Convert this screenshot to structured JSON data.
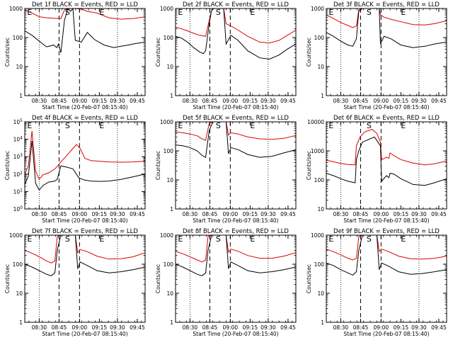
{
  "chart_data": [
    {
      "type": "line",
      "title": "Det 1f BLACK = Events, RED = LLD",
      "ylabel": "Counts/sec",
      "xlabel": "Start Time (20-Feb-07 08:15:40)",
      "yscale": "log",
      "ylim": [
        1,
        1000
      ],
      "ytick_labels": [
        "1",
        "10",
        "100",
        "1000"
      ],
      "xtick_labels": [
        "08:30",
        "08:45",
        "09:00",
        "09:15",
        "09:30",
        "09:45"
      ],
      "markers": [
        "E",
        "S",
        "E"
      ],
      "series": [
        {
          "color": "#000000",
          "t": [
            0,
            0.06,
            0.12,
            0.18,
            0.24,
            0.265,
            0.28,
            0.3,
            0.33,
            0.36,
            0.38,
            0.4,
            0.42,
            0.47,
            0.52,
            0.58,
            0.66,
            0.74,
            0.8,
            0.86,
            0.92,
            1
          ],
          "values": [
            170,
            120,
            75,
            48,
            55,
            45,
            60,
            30,
            400,
            1000,
            800,
            1000,
            80,
            70,
            150,
            85,
            55,
            45,
            50,
            55,
            62,
            70
          ]
        },
        {
          "color": "#dd0000",
          "t": [
            0,
            0.06,
            0.12,
            0.18,
            0.24,
            0.3,
            0.33,
            0.36,
            0.38,
            0.4,
            0.42,
            0.47,
            0.52,
            0.6,
            0.7,
            0.8,
            0.9,
            1
          ],
          "values": [
            900,
            700,
            520,
            480,
            460,
            450,
            900,
            1000,
            1000,
            1000,
            1000,
            950,
            800,
            700,
            480,
            430,
            450,
            520
          ]
        }
      ]
    },
    {
      "type": "line",
      "title": "Det 2f BLACK = Events, RED = LLD",
      "ylabel": "Counts/sec",
      "xlabel": "Start Time (20-Feb-07 08:15:40)",
      "yscale": "log",
      "ylim": [
        1,
        1000
      ],
      "ytick_labels": [
        "1",
        "10",
        "100",
        "1000"
      ],
      "xtick_labels": [
        "08:30",
        "08:45",
        "09:00",
        "09:15",
        "09:30",
        "09:45"
      ],
      "markers": [
        "E",
        "S",
        "E"
      ],
      "series": [
        {
          "color": "#000000",
          "t": [
            0,
            0.05,
            0.1,
            0.15,
            0.2,
            0.23,
            0.25,
            0.28,
            0.3,
            0.32,
            0.38,
            0.4,
            0.42,
            0.46,
            0.52,
            0.6,
            0.7,
            0.78,
            0.86,
            0.93,
            1
          ],
          "values": [
            110,
            95,
            70,
            45,
            32,
            28,
            35,
            300,
            900,
            1000,
            1000,
            1000,
            60,
            120,
            80,
            35,
            20,
            18,
            25,
            40,
            60
          ]
        },
        {
          "color": "#dd0000",
          "t": [
            0,
            0.05,
            0.1,
            0.15,
            0.2,
            0.25,
            0.3,
            0.32,
            0.38,
            0.4,
            0.42,
            0.46,
            0.52,
            0.6,
            0.7,
            0.78,
            0.86,
            0.93,
            1
          ],
          "values": [
            230,
            200,
            170,
            140,
            120,
            110,
            900,
            1000,
            1000,
            1000,
            300,
            250,
            180,
            110,
            70,
            65,
            80,
            120,
            180
          ]
        }
      ]
    },
    {
      "type": "line",
      "title": "Det 3f BLACK = Events, RED = LLD",
      "ylabel": "Counts/sec",
      "xlabel": "Start Time (20-Feb-07 08:15:40)",
      "yscale": "log",
      "ylim": [
        1,
        1000
      ],
      "ytick_labels": [
        "1",
        "10",
        "100",
        "1000"
      ],
      "xtick_labels": [
        "08:30",
        "08:45",
        "09:00",
        "09:15",
        "09:30",
        "09:45"
      ],
      "markers": [
        "E",
        "S",
        "E"
      ],
      "series": [
        {
          "color": "#000000",
          "t": [
            0,
            0.06,
            0.12,
            0.18,
            0.22,
            0.25,
            0.27,
            0.3,
            0.35,
            0.4,
            0.44,
            0.45,
            0.48,
            0.54,
            0.62,
            0.72,
            0.82,
            0.9,
            1
          ],
          "values": [
            150,
            110,
            75,
            55,
            50,
            90,
            800,
            1000,
            1000,
            1000,
            1000,
            60,
            110,
            90,
            55,
            45,
            50,
            60,
            70
          ]
        },
        {
          "color": "#dd0000",
          "t": [
            0,
            0.06,
            0.12,
            0.18,
            0.22,
            0.25,
            0.27,
            0.3,
            0.4,
            0.44,
            0.45,
            0.48,
            0.54,
            0.62,
            0.72,
            0.82,
            0.9,
            1
          ],
          "values": [
            600,
            450,
            330,
            260,
            220,
            250,
            900,
            1000,
            1000,
            1000,
            600,
            500,
            420,
            350,
            280,
            270,
            300,
            380
          ]
        }
      ]
    },
    {
      "type": "line",
      "title": "Det 4f BLACK = Events, RED = LLD",
      "ylabel": "Counts/sec",
      "xlabel": "Start Time (20-Feb-07 08:15:40)",
      "yscale": "log",
      "ylim": [
        1,
        100000
      ],
      "ytick_labels": [
        "10^0",
        "10^1",
        "10^2",
        "10^3",
        "10^4",
        "10^5"
      ],
      "xtick_labels": [
        "08:30",
        "08:45",
        "09:00",
        "09:15",
        "09:30",
        "09:45"
      ],
      "markers": [
        "E",
        "S",
        "E"
      ],
      "series": [
        {
          "color": "#000000",
          "t": [
            0,
            0.03,
            0.06,
            0.09,
            0.12,
            0.15,
            0.2,
            0.25,
            0.27,
            0.3,
            0.35,
            0.4,
            0.45,
            0.5,
            0.55,
            0.62,
            0.7,
            0.8,
            0.9,
            1
          ],
          "values": [
            25,
            80,
            8000,
            30,
            12,
            22,
            35,
            40,
            50,
            300,
            250,
            200,
            60,
            45,
            40,
            38,
            40,
            50,
            70,
            100
          ]
        },
        {
          "color": "#dd0000",
          "t": [
            0,
            0.03,
            0.06,
            0.09,
            0.12,
            0.15,
            0.2,
            0.25,
            0.27,
            0.3,
            0.35,
            0.4,
            0.43,
            0.46,
            0.5,
            0.55,
            0.62,
            0.7,
            0.8,
            0.9,
            1
          ],
          "values": [
            100,
            300,
            30000,
            150,
            50,
            90,
            120,
            200,
            280,
            500,
            1200,
            3000,
            5000,
            3000,
            800,
            600,
            550,
            500,
            480,
            500,
            550
          ]
        }
      ]
    },
    {
      "type": "line",
      "title": "Det 5f BLACK = Events, RED = LLD",
      "ylabel": "Counts/sec",
      "xlabel": "Start Time (20-Feb-07 08:15:40)",
      "yscale": "log",
      "ylim": [
        1,
        1000
      ],
      "ytick_labels": [
        "1",
        "10",
        "100",
        "1000"
      ],
      "xtick_labels": [
        "08:30",
        "08:45",
        "09:00",
        "09:15",
        "09:30",
        "09:45"
      ],
      "markers": [
        "E",
        "S",
        "E"
      ],
      "series": [
        {
          "color": "#000000",
          "t": [
            0,
            0.06,
            0.12,
            0.18,
            0.22,
            0.25,
            0.28,
            0.31,
            0.38,
            0.42,
            0.44,
            0.46,
            0.52,
            0.6,
            0.7,
            0.8,
            0.9,
            1
          ],
          "values": [
            160,
            150,
            130,
            100,
            70,
            60,
            500,
            1000,
            1000,
            1000,
            80,
            130,
            110,
            75,
            60,
            65,
            85,
            110
          ]
        },
        {
          "color": "#dd0000",
          "t": [
            0,
            0.06,
            0.12,
            0.18,
            0.22,
            0.25,
            0.28,
            0.31,
            0.38,
            0.42,
            0.44,
            0.46,
            0.52,
            0.6,
            0.7,
            0.8,
            0.9,
            1
          ],
          "values": [
            450,
            420,
            380,
            330,
            260,
            230,
            900,
            1000,
            1000,
            1000,
            350,
            420,
            380,
            300,
            260,
            250,
            270,
            340
          ]
        }
      ]
    },
    {
      "type": "line",
      "title": "Det 6f BLACK = Events, RED = LLD",
      "ylabel": "Counts/sec",
      "xlabel": "Start Time (20-Feb-07 08:15:40)",
      "yscale": "log",
      "ylim": [
        10,
        10000
      ],
      "ytick_labels": [
        "10",
        "100",
        "1000",
        "10000"
      ],
      "xtick_labels": [
        "08:30",
        "08:45",
        "09:00",
        "09:15",
        "09:30",
        "09:45"
      ],
      "markers": [
        "E",
        "S",
        "E"
      ],
      "series": [
        {
          "color": "#000000",
          "t": [
            0,
            0.06,
            0.12,
            0.18,
            0.24,
            0.25,
            0.27,
            0.3,
            0.4,
            0.45,
            0.46,
            0.5,
            0.52,
            0.53,
            0.56,
            0.62,
            0.72,
            0.82,
            0.9,
            1
          ],
          "values": [
            170,
            140,
            110,
            90,
            80,
            500,
            1000,
            2000,
            3000,
            1500,
            90,
            140,
            120,
            170,
            160,
            110,
            70,
            65,
            80,
            110
          ]
        },
        {
          "color": "#dd0000",
          "t": [
            0,
            0.06,
            0.12,
            0.18,
            0.24,
            0.25,
            0.28,
            0.32,
            0.38,
            0.42,
            0.45,
            0.46,
            0.5,
            0.52,
            0.53,
            0.56,
            0.62,
            0.72,
            0.82,
            0.9,
            1
          ],
          "values": [
            480,
            420,
            370,
            340,
            330,
            1500,
            3000,
            4500,
            5500,
            4000,
            2000,
            500,
            600,
            550,
            850,
            700,
            500,
            380,
            330,
            360,
            450
          ]
        }
      ]
    },
    {
      "type": "line",
      "title": "Det 7f BLACK = Events, RED = LLD",
      "ylabel": "Counts/sec",
      "xlabel": "Start Time (20-Feb-07 08:15:40)",
      "yscale": "log",
      "ylim": [
        1,
        1000
      ],
      "ytick_labels": [
        "1",
        "10",
        "100",
        "1000"
      ],
      "xtick_labels": [
        "08:30",
        "08:45",
        "09:00",
        "09:15",
        "09:30",
        "09:45"
      ],
      "markers": [
        "E",
        "S",
        "E"
      ],
      "series": [
        {
          "color": "#000000",
          "t": [
            0,
            0.06,
            0.12,
            0.18,
            0.22,
            0.25,
            0.27,
            0.3,
            0.4,
            0.42,
            0.44,
            0.46,
            0.52,
            0.6,
            0.7,
            0.8,
            0.9,
            1
          ],
          "values": [
            100,
            80,
            60,
            45,
            40,
            50,
            300,
            1000,
            1000,
            1000,
            70,
            120,
            90,
            60,
            50,
            55,
            65,
            80
          ]
        },
        {
          "color": "#dd0000",
          "t": [
            0,
            0.06,
            0.12,
            0.18,
            0.22,
            0.25,
            0.27,
            0.3,
            0.4,
            0.42,
            0.44,
            0.46,
            0.52,
            0.6,
            0.7,
            0.8,
            0.9,
            1
          ],
          "values": [
            300,
            240,
            180,
            130,
            110,
            130,
            900,
            1000,
            1000,
            1000,
            250,
            320,
            270,
            190,
            150,
            155,
            180,
            250
          ]
        }
      ]
    },
    {
      "type": "line",
      "title": "Det 8f BLACK = Events, RED = LLD",
      "ylabel": "Counts/sec",
      "xlabel": "Start Time (20-Feb-07 08:15:40)",
      "yscale": "log",
      "ylim": [
        1,
        1000
      ],
      "ytick_labels": [
        "1",
        "10",
        "100",
        "1000"
      ],
      "xtick_labels": [
        "08:30",
        "08:45",
        "09:00",
        "09:15",
        "09:30",
        "09:45"
      ],
      "markers": [
        "E",
        "S",
        "E"
      ],
      "series": [
        {
          "color": "#000000",
          "t": [
            0,
            0.06,
            0.12,
            0.18,
            0.22,
            0.25,
            0.27,
            0.3,
            0.4,
            0.42,
            0.44,
            0.46,
            0.52,
            0.6,
            0.7,
            0.8,
            0.9,
            1
          ],
          "values": [
            100,
            80,
            60,
            45,
            40,
            50,
            300,
            1000,
            1000,
            1000,
            70,
            120,
            90,
            60,
            50,
            55,
            65,
            80
          ]
        },
        {
          "color": "#dd0000",
          "t": [
            0,
            0.06,
            0.12,
            0.18,
            0.22,
            0.25,
            0.27,
            0.3,
            0.4,
            0.42,
            0.44,
            0.46,
            0.52,
            0.6,
            0.7,
            0.8,
            0.9,
            1
          ],
          "values": [
            280,
            230,
            180,
            140,
            120,
            140,
            900,
            1000,
            1000,
            1000,
            260,
            330,
            280,
            200,
            160,
            160,
            190,
            250
          ]
        }
      ]
    },
    {
      "type": "line",
      "title": "Det 9f BLACK = Events, RED = LLD",
      "ylabel": "Counts/sec",
      "xlabel": "Start Time (20-Feb-07 08:15:40)",
      "yscale": "log",
      "ylim": [
        1,
        1000
      ],
      "ytick_labels": [
        "1",
        "10",
        "100",
        "1000"
      ],
      "xtick_labels": [
        "08:30",
        "08:45",
        "09:00",
        "09:15",
        "09:30",
        "09:45"
      ],
      "markers": [
        "E",
        "S",
        "E"
      ],
      "series": [
        {
          "color": "#000000",
          "t": [
            0,
            0.06,
            0.12,
            0.18,
            0.22,
            0.25,
            0.27,
            0.3,
            0.4,
            0.42,
            0.44,
            0.46,
            0.52,
            0.6,
            0.7,
            0.8,
            0.9,
            1
          ],
          "values": [
            110,
            90,
            65,
            50,
            42,
            55,
            300,
            1000,
            1000,
            1000,
            65,
            110,
            85,
            55,
            45,
            48,
            55,
            65
          ]
        },
        {
          "color": "#dd0000",
          "t": [
            0,
            0.06,
            0.12,
            0.18,
            0.22,
            0.25,
            0.27,
            0.3,
            0.4,
            0.42,
            0.44,
            0.46,
            0.52,
            0.6,
            0.7,
            0.8,
            0.9,
            1
          ],
          "values": [
            330,
            270,
            210,
            160,
            140,
            160,
            900,
            1000,
            1000,
            1000,
            280,
            330,
            270,
            190,
            155,
            150,
            160,
            190
          ]
        }
      ]
    }
  ]
}
